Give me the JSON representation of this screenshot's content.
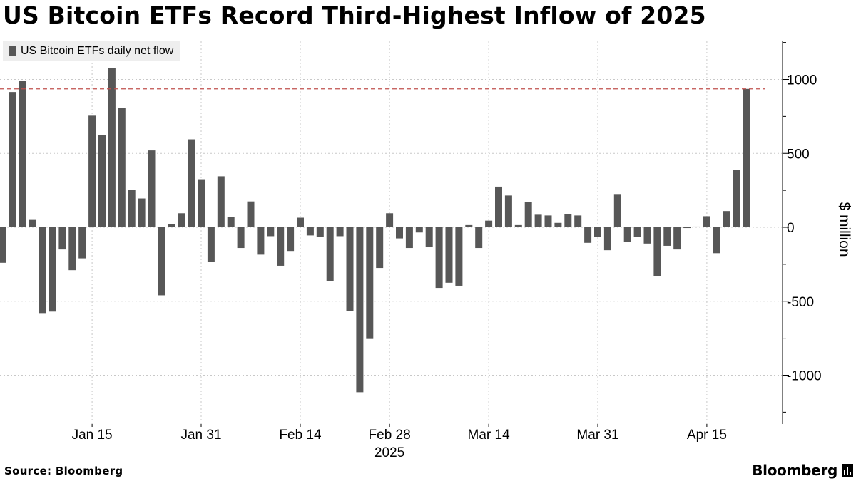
{
  "title": "US Bitcoin ETFs Record Third-Highest Inflow of 2025",
  "source": "Source: Bloomberg",
  "brand": "Bloomberg",
  "chart_data": {
    "type": "bar",
    "title": "US Bitcoin ETFs Record Third-Highest Inflow of 2025",
    "ylabel": "$ million",
    "xlabel": "2025",
    "ylim": [
      -1300,
      1280
    ],
    "yticks": [
      1000,
      500,
      0,
      -500,
      -1000
    ],
    "ytick_labels": [
      "1000",
      "500",
      "0",
      "-500",
      "-1000"
    ],
    "grid": true,
    "legend_position": "top-left",
    "bar_color": "#575757",
    "reference_line": {
      "value": 936,
      "style": "dashed",
      "color": "#c0504d"
    },
    "xtick_labels": [
      {
        "label": "Jan 15",
        "at_index": 9
      },
      {
        "label": "Jan 31",
        "at_index": 20
      },
      {
        "label": "Feb 14",
        "at_index": 30
      },
      {
        "label": "Feb 28",
        "at_index": 39
      },
      {
        "label": "Mar 14",
        "at_index": 49
      },
      {
        "label": "Mar 31",
        "at_index": 60
      },
      {
        "label": "Apr 15",
        "at_index": 71
      }
    ],
    "year_label": "2025",
    "series": [
      {
        "name": "US Bitcoin ETFs daily net flow",
        "values": [
          -240,
          915,
          990,
          50,
          -580,
          -570,
          -150,
          -290,
          -210,
          755,
          625,
          1075,
          805,
          255,
          195,
          520,
          -460,
          20,
          95,
          595,
          325,
          -235,
          345,
          70,
          -140,
          175,
          -185,
          -60,
          -260,
          -160,
          65,
          -55,
          -65,
          -365,
          -60,
          -565,
          -1115,
          -755,
          -275,
          95,
          -75,
          -140,
          -35,
          -135,
          -410,
          -375,
          -395,
          15,
          -140,
          45,
          275,
          215,
          15,
          170,
          85,
          80,
          30,
          90,
          80,
          -105,
          -65,
          -155,
          225,
          -100,
          -65,
          -110,
          -330,
          -125,
          -150,
          -5,
          5,
          75,
          -175,
          110,
          390,
          936
        ]
      }
    ]
  }
}
